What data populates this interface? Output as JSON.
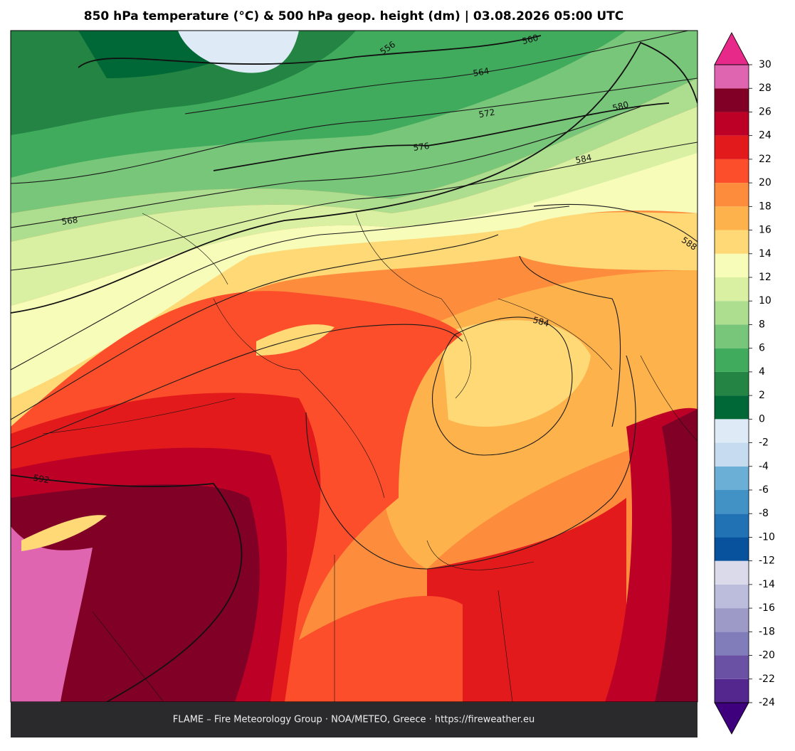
{
  "title": "850 hPa temperature (°C) & 500 hPa geop. height (dm)  |  03.08.2026 05:00 UTC",
  "footer": "FLAME – Fire Meteorology Group · NOA/METEO, Greece · https://fireweather.eu",
  "contour_labels": [
    560,
    564,
    572,
    580,
    584,
    576,
    568,
    588,
    592,
    584,
    556
  ],
  "colorbar": {
    "ticks": [
      -24,
      -22,
      -20,
      -18,
      -16,
      -14,
      -12,
      -10,
      -8,
      -6,
      -4,
      -2,
      0,
      2,
      4,
      6,
      8,
      10,
      12,
      14,
      16,
      18,
      20,
      22,
      24,
      26,
      28,
      30
    ],
    "colors": [
      "#54278f",
      "#6a51a3",
      "#807dba",
      "#9e9ac8",
      "#bcbddc",
      "#dadaeb",
      "#08519c",
      "#2171b5",
      "#4292c6",
      "#6baed6",
      "#c6dbef",
      "#deebf7",
      "#006837",
      "#238443",
      "#41ab5d",
      "#78c679",
      "#addd8e",
      "#d9f0a3",
      "#f7fcb9",
      "#fed976",
      "#feb24c",
      "#fd8d3c",
      "#fc4e2a",
      "#e31a1c",
      "#bd0026",
      "#800026",
      "#df65b0"
    ],
    "extend_colors": [
      "#3f007d",
      "#e7298a"
    ]
  }
}
